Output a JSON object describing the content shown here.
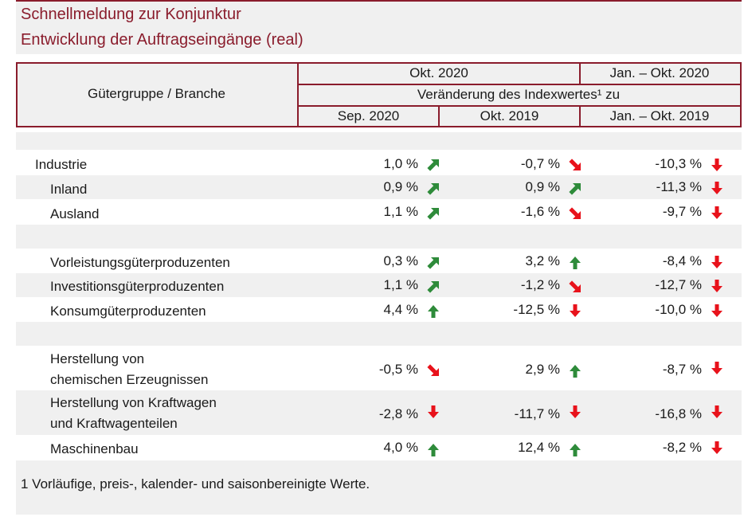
{
  "header": {
    "title": "Schnellmeldung zur Konjunktur",
    "subtitle": "Entwicklung der Auftragseingänge (real)"
  },
  "table": {
    "group_header": "Gütergruppe / Branche",
    "period_current": "Okt. 2020",
    "period_cumulative": "Jan. – Okt. 2020",
    "change_caption": "Veränderung des Indexwertes¹ zu",
    "col_prev_month": "Sep. 2020",
    "col_prev_year": "Okt. 2019",
    "col_prev_cumulative": "Jan. – Okt. 2019"
  },
  "rows": [
    {
      "label": "Industrie",
      "v1": "1,0 %",
      "a1": "up-right",
      "v2": "-0,7 %",
      "a2": "down-right",
      "v3": "-10,3 %",
      "a3": "down"
    },
    {
      "label": "Inland",
      "v1": "0,9 %",
      "a1": "up-right",
      "v2": "0,9 %",
      "a2": "up-right",
      "v3": "-11,3 %",
      "a3": "down"
    },
    {
      "label": "Ausland",
      "v1": "1,1 %",
      "a1": "up-right",
      "v2": "-1,6 %",
      "a2": "down-right",
      "v3": "-9,7 %",
      "a3": "down"
    },
    {
      "label": "Vorleistungsgüterproduzenten",
      "v1": "0,3 %",
      "a1": "up-right",
      "v2": "3,2 %",
      "a2": "up",
      "v3": "-8,4 %",
      "a3": "down"
    },
    {
      "label": "Investitionsgüterproduzenten",
      "v1": "1,1 %",
      "a1": "up-right",
      "v2": "-1,2 %",
      "a2": "down-right",
      "v3": "-12,7 %",
      "a3": "down"
    },
    {
      "label": "Konsumgüterproduzenten",
      "v1": "4,4 %",
      "a1": "up",
      "v2": "-12,5 %",
      "a2": "down",
      "v3": "-10,0 %",
      "a3": "down"
    },
    {
      "label_line1": "Herstellung von",
      "label_line2": "chemischen Erzeugnissen",
      "v1": "-0,5 %",
      "a1": "down-right",
      "v2": "2,9 %",
      "a2": "up",
      "v3": "-8,7 %",
      "a3": "down"
    },
    {
      "label_line1": "Herstellung von Kraftwagen",
      "label_line2": "und Kraftwagenteilen",
      "v1": "-2,8 %",
      "a1": "down",
      "v2": "-11,7 %",
      "a2": "down",
      "v3": "-16,8 %",
      "a3": "down"
    },
    {
      "label": "Maschinenbau",
      "v1": "4,0 %",
      "a1": "up",
      "v2": "12,4 %",
      "a2": "up",
      "v3": "-8,2 %",
      "a3": "down"
    }
  ],
  "footnote": "1 Vorläufige, preis-, kalender- und saisonbereinigte Werte.",
  "colors": {
    "accent": "#8a1c2c",
    "positive": "#2e8b3a",
    "negative": "#e8121b",
    "shade": "#f0f0f0"
  }
}
